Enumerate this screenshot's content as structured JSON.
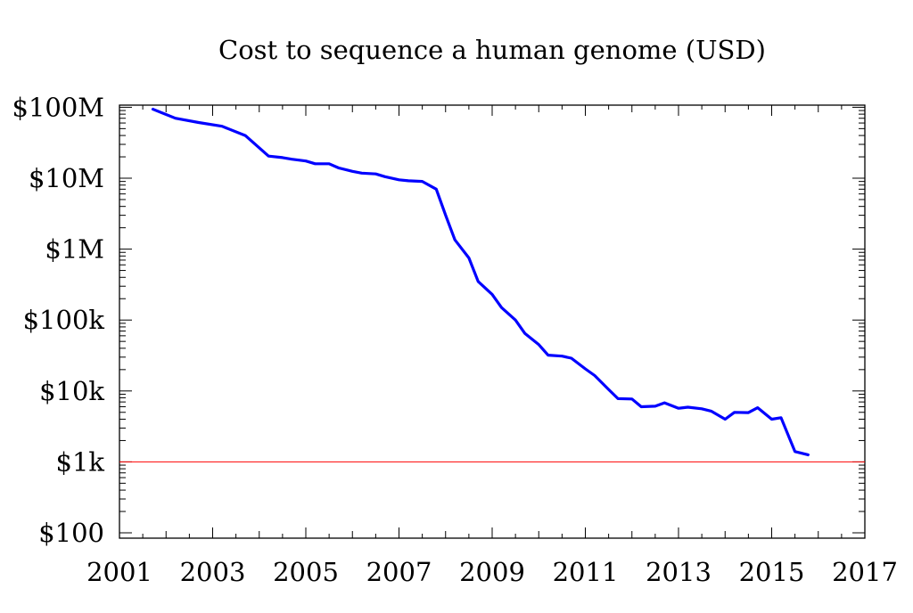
{
  "chart_data": {
    "type": "line",
    "title": "Cost to sequence a human genome (USD)",
    "xlabel": "",
    "ylabel": "",
    "y_scale": "log",
    "xlim": [
      2001,
      2017
    ],
    "ylim": [
      100,
      100000000
    ],
    "x_ticks": [
      2001,
      2003,
      2005,
      2007,
      2009,
      2011,
      2013,
      2015,
      2017
    ],
    "y_ticks": [
      {
        "value": 100,
        "label": "$100"
      },
      {
        "value": 1000,
        "label": "$1k"
      },
      {
        "value": 10000,
        "label": "$10k"
      },
      {
        "value": 100000,
        "label": "$100k"
      },
      {
        "value": 1000000,
        "label": "$1M"
      },
      {
        "value": 10000000,
        "label": "$10M"
      },
      {
        "value": 100000000,
        "label": "$100M"
      }
    ],
    "grid": false,
    "reference_line": {
      "value": 1000,
      "color": "#ff0000"
    },
    "series": [
      {
        "color": "#0000ff",
        "points": [
          [
            2001.7,
            95000000
          ],
          [
            2002.2,
            70000000
          ],
          [
            2002.7,
            61000000
          ],
          [
            2003.2,
            54000000
          ],
          [
            2003.7,
            40000000
          ],
          [
            2004.2,
            20500000
          ],
          [
            2004.5,
            19500000
          ],
          [
            2004.7,
            18500000
          ],
          [
            2005.0,
            17500000
          ],
          [
            2005.2,
            16000000
          ],
          [
            2005.5,
            16000000
          ],
          [
            2005.7,
            14000000
          ],
          [
            2006.0,
            12500000
          ],
          [
            2006.2,
            11800000
          ],
          [
            2006.5,
            11500000
          ],
          [
            2006.7,
            10500000
          ],
          [
            2007.0,
            9500000
          ],
          [
            2007.2,
            9200000
          ],
          [
            2007.5,
            9000000
          ],
          [
            2007.8,
            7000000
          ],
          [
            2008.0,
            3000000
          ],
          [
            2008.2,
            1350000
          ],
          [
            2008.5,
            750000
          ],
          [
            2008.7,
            350000
          ],
          [
            2009.0,
            230000
          ],
          [
            2009.2,
            150000
          ],
          [
            2009.5,
            100000
          ],
          [
            2009.7,
            65000
          ],
          [
            2010.0,
            45000
          ],
          [
            2010.2,
            32000
          ],
          [
            2010.5,
            31000
          ],
          [
            2010.7,
            29000
          ],
          [
            2011.0,
            20500
          ],
          [
            2011.2,
            16500
          ],
          [
            2011.5,
            10500
          ],
          [
            2011.7,
            7800
          ],
          [
            2012.0,
            7700
          ],
          [
            2012.2,
            6000
          ],
          [
            2012.5,
            6100
          ],
          [
            2012.7,
            6800
          ],
          [
            2013.0,
            5700
          ],
          [
            2013.2,
            5900
          ],
          [
            2013.5,
            5600
          ],
          [
            2013.7,
            5200
          ],
          [
            2014.0,
            4000
          ],
          [
            2014.2,
            5000
          ],
          [
            2014.5,
            4950
          ],
          [
            2014.7,
            5800
          ],
          [
            2015.0,
            4000
          ],
          [
            2015.2,
            4200
          ],
          [
            2015.5,
            1400
          ],
          [
            2015.8,
            1250
          ]
        ]
      }
    ]
  }
}
